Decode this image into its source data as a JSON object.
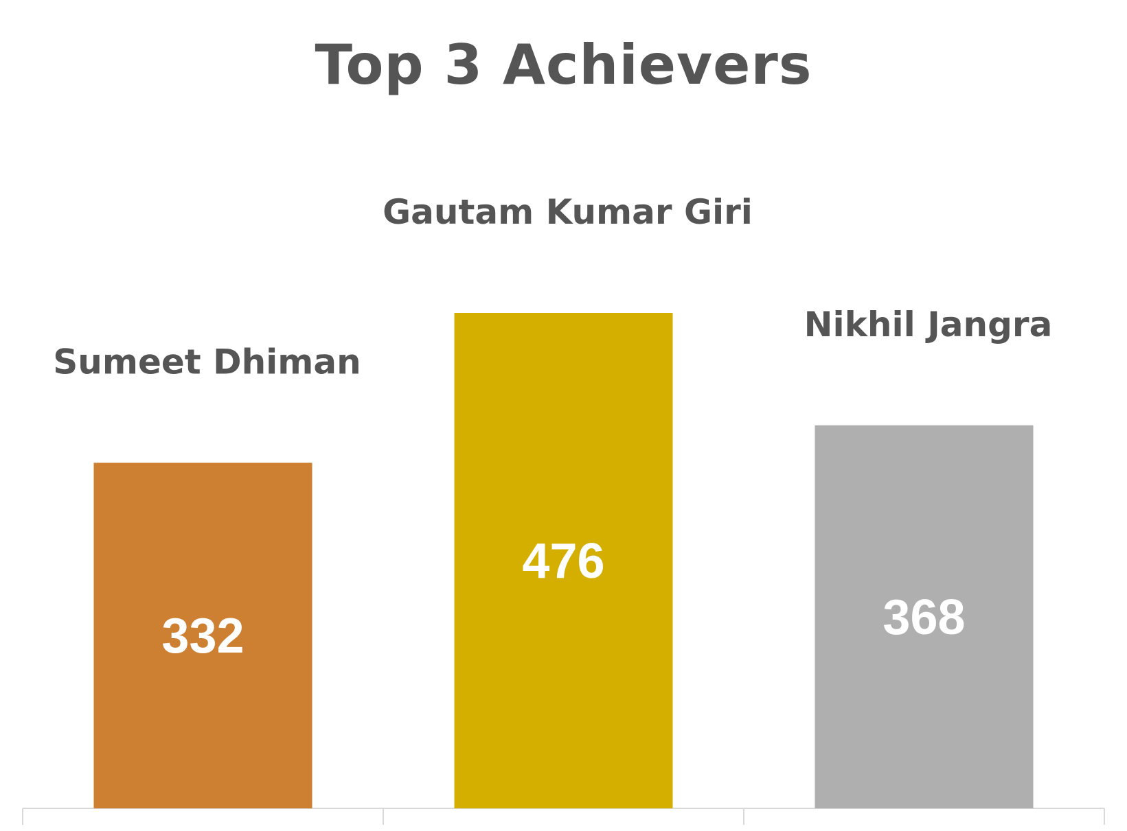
{
  "chart_data": {
    "type": "bar",
    "title": "Top 3 Achievers",
    "categories": [
      "Sumeet Dhiman",
      "Gautam Kumar Giri",
      "Nikhil Jangra"
    ],
    "values": [
      332,
      476,
      368
    ],
    "colors": [
      "#CD7F32",
      "#D4AF00",
      "#AFAFAF"
    ],
    "xlabel": "",
    "ylabel": "",
    "grid": false,
    "legend": "none",
    "axis_color": "#D9D9D9",
    "name_color": "#555555",
    "value_label_color": "#FFFFFF"
  }
}
